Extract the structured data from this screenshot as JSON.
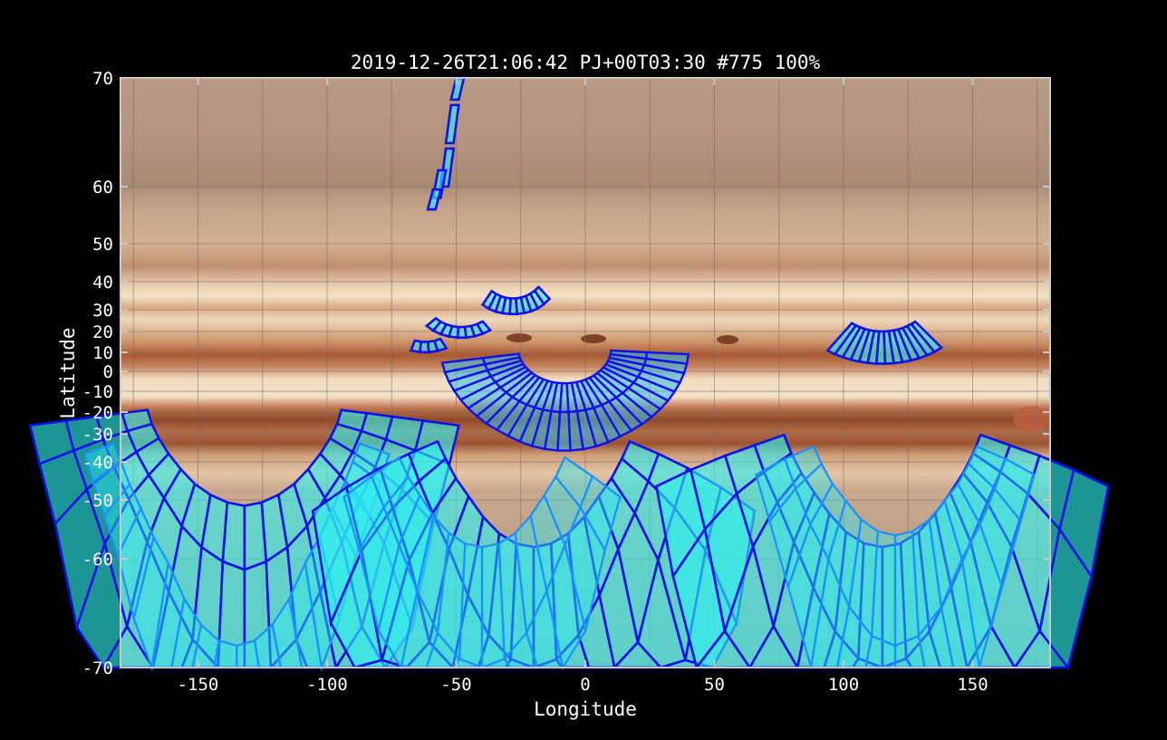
{
  "title": "2019-12-26T21:06:42   PJ+00T03:30 #775 100%",
  "xlabel": "Longitude",
  "ylabel": "Latitude",
  "x_ticks": [
    -150,
    -100,
    -50,
    0,
    50,
    100,
    150
  ],
  "y_ticks": [
    70,
    60,
    50,
    40,
    30,
    20,
    10,
    0,
    -10,
    -20,
    -30,
    -40,
    -50,
    -60,
    -70
  ],
  "xlim": [
    -180,
    180
  ],
  "ylim": [
    -70,
    70
  ],
  "colors": {
    "background": "#000000",
    "footprint_edge": "#1010e8",
    "footprint_fill": "#2ef0f0",
    "axis_frame": "#c8c8c8"
  },
  "map_layer": "jupiter-cylindrical-map",
  "footprint_groups": [
    {
      "name": "north-polar-strip",
      "shape": "strip",
      "lon": [
        -57,
        -48
      ],
      "lat": [
        58,
        70
      ]
    },
    {
      "name": "north-arc-a",
      "shape": "arc",
      "lon": [
        -38,
        -16
      ],
      "lat": [
        28,
        38
      ]
    },
    {
      "name": "north-arc-b",
      "shape": "arc",
      "lon": [
        -60,
        -40
      ],
      "lat": [
        17,
        28
      ]
    },
    {
      "name": "north-arc-c",
      "shape": "arc",
      "lon": [
        -70,
        -63
      ],
      "lat": [
        2,
        18
      ]
    },
    {
      "name": "north-east-arc",
      "shape": "arc",
      "lon": [
        95,
        140
      ],
      "lat": [
        1,
        20
      ]
    },
    {
      "name": "equatorial-fan",
      "shape": "fan",
      "lon": [
        -62,
        35
      ],
      "lat": [
        -53,
        5
      ]
    },
    {
      "name": "south-west-fan",
      "shape": "fan",
      "lon": [
        -180,
        -80
      ],
      "lat": [
        -70,
        -20
      ]
    },
    {
      "name": "south-center-fan",
      "shape": "fan",
      "lon": [
        -95,
        50
      ],
      "lat": [
        -70,
        -30
      ]
    },
    {
      "name": "south-east-fan",
      "shape": "fan",
      "lon": [
        40,
        180
      ],
      "lat": [
        -70,
        -20
      ]
    }
  ]
}
